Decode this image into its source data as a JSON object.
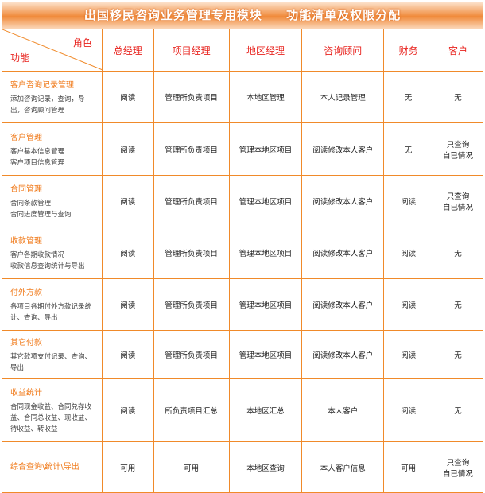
{
  "title": {
    "part1": "出国移民咨询业务管理专用模块",
    "part2": "功能清单及权限分配"
  },
  "header": {
    "role_label": "角色",
    "function_label": "功能",
    "columns": [
      "总经理",
      "项目经理",
      "地区经理",
      "咨询顾问",
      "财务",
      "客户"
    ]
  },
  "rows": [
    {
      "name": "客户咨询记录管理",
      "desc": "添加咨询记录，查询，导出，咨询顾问管理",
      "cells": [
        "阅读",
        "管理所负责项目",
        "本地区管理",
        "本人记录管理",
        "无",
        "无"
      ]
    },
    {
      "name": "客户管理",
      "desc": "客户基本信息管理\n客户项目信息管理",
      "cells": [
        "阅读",
        "管理所负责项目",
        "管理本地区项目",
        "阅读修改本人客户",
        "无",
        "只查询\n自已情况"
      ]
    },
    {
      "name": "合同管理",
      "desc": "合同条款管理\n合同进度管理与查询",
      "cells": [
        "阅读",
        "管理所负责项目",
        "管理本地区项目",
        "阅读修改本人客户",
        "阅读",
        "只查询\n自已情况"
      ]
    },
    {
      "name": "收款管理",
      "desc": "客户各期收款情况\n收款信息查询统计与导出",
      "cells": [
        "阅读",
        "管理所负责项目",
        "管理本地区项目",
        "阅读修改本人客户",
        "阅读",
        "无"
      ]
    },
    {
      "name": "付外方款",
      "desc": "各项目各期付外方款记录统计、查询、导出",
      "cells": [
        "阅读",
        "管理所负责项目",
        "管理本地区项目",
        "阅读修改本人客户",
        "阅读",
        "无"
      ]
    },
    {
      "name": "其它付款",
      "desc": "其它款项支付记录、查询、导出",
      "cells": [
        "阅读",
        "管理所负责项目",
        "管理本地区项目",
        "阅读修改本人客户",
        "阅读",
        "无"
      ]
    },
    {
      "name": "收益统计",
      "desc": "合同现金收益、合同兑存收益、合同总收益、现收益、待收益、转收益",
      "cells": [
        "阅读",
        "所负责项目汇总",
        "本地区汇总",
        "本人客户",
        "阅读",
        "无"
      ]
    },
    {
      "name": "综合查询\\统计\\导出",
      "desc": "",
      "cells": [
        "可用",
        "可用",
        "本地区查询",
        "本人客户信息",
        "可用",
        "只查询\n自已情况"
      ]
    }
  ]
}
